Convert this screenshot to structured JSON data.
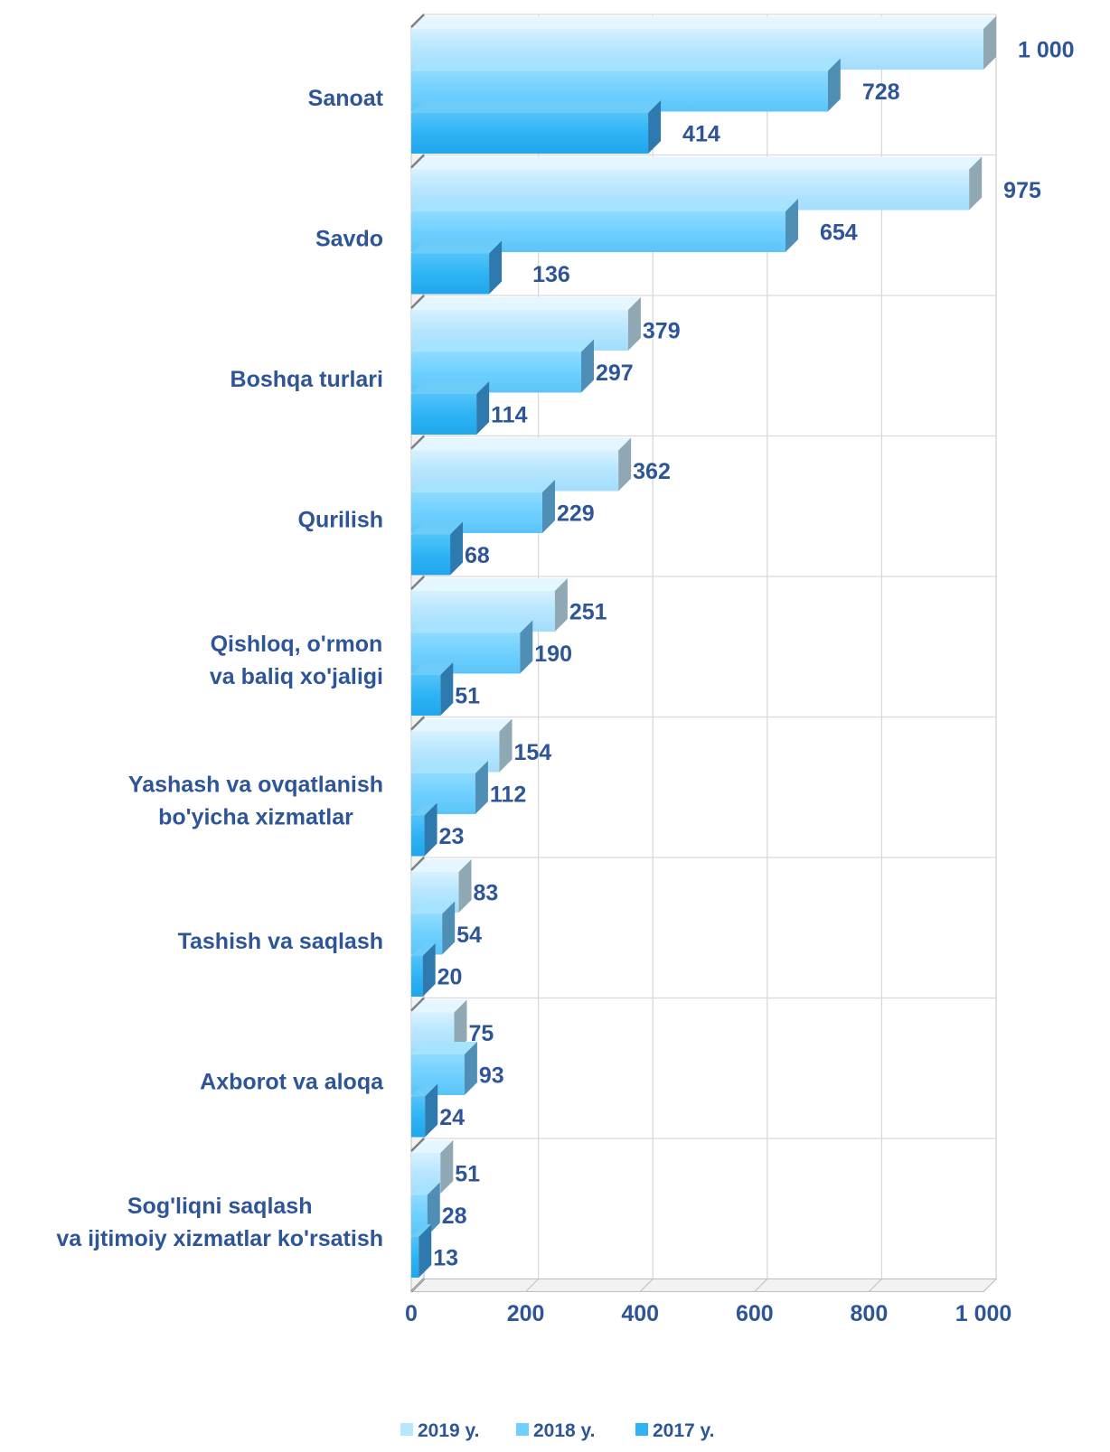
{
  "chart_data": {
    "type": "bar",
    "orientation": "horizontal",
    "categories": [
      [
        "Sanoat"
      ],
      [
        "Savdo"
      ],
      [
        "Boshqa turlari"
      ],
      [
        "Qurilish"
      ],
      [
        "Qishloq, o'rmon",
        "va baliq xo'jaligi"
      ],
      [
        "Yashash va ovqatlanish",
        "bo'yicha xizmatlar"
      ],
      [
        "Tashish va saqlash"
      ],
      [
        "Axborot va aloqa"
      ],
      [
        "Sog'liqni saqlash",
        "va ijtimoiy xizmatlar ko'rsatish"
      ]
    ],
    "series": [
      {
        "name": "2019 y.",
        "color": "#B7E6FF",
        "values": [
          1000,
          975,
          379,
          362,
          251,
          154,
          83,
          75,
          51
        ]
      },
      {
        "name": "2018 y.",
        "color": "#6FD0FF",
        "values": [
          728,
          654,
          297,
          229,
          190,
          112,
          54,
          93,
          28
        ]
      },
      {
        "name": "2017 y.",
        "color": "#2EB4F5",
        "values": [
          414,
          136,
          114,
          68,
          51,
          23,
          20,
          24,
          13
        ]
      }
    ],
    "value_labels": [
      [
        "1 000",
        "975",
        "379",
        "362",
        "251",
        "154",
        "83",
        "75",
        "51"
      ],
      [
        "728",
        "654",
        "297",
        "229",
        "190",
        "112",
        "54",
        "93",
        "28"
      ],
      [
        "414",
        "136",
        "114",
        "68",
        "51",
        "23",
        "20",
        "24",
        "13"
      ]
    ],
    "x_ticks": [
      0,
      200,
      400,
      600,
      800,
      1000
    ],
    "x_tick_labels": [
      "0",
      "200",
      "400",
      "600",
      "800",
      "1 000"
    ],
    "xlim": [
      0,
      1000
    ],
    "grid": true,
    "legend_position": "bottom",
    "label_color": "#2E5597",
    "title": "",
    "xlabel": "",
    "ylabel": ""
  }
}
